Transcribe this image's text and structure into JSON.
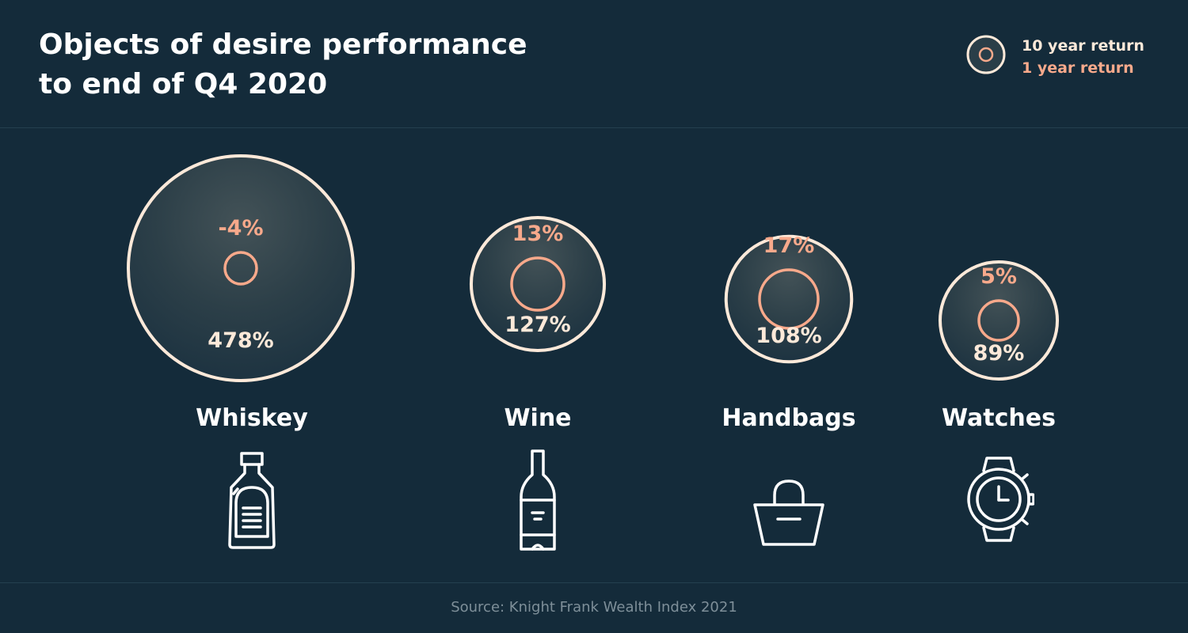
{
  "title_lines": [
    "Objects of desire performance",
    "to end of Q4 2020"
  ],
  "legend": {
    "ten_year": "10 year return",
    "one_year": "1 year return"
  },
  "colors": {
    "background": "#142b3a",
    "ten_year": "#fde9d9",
    "one_year": "#f8a98b",
    "label": "#ffffff",
    "source": "#7e8f99"
  },
  "chart_data": {
    "type": "bubble",
    "series": [
      {
        "name": "10 year return",
        "unit": "%"
      },
      {
        "name": "1 year return",
        "unit": "%"
      }
    ],
    "items": [
      {
        "category": "Whiskey",
        "ten_year_return": 478,
        "ten_year_label": "478%",
        "one_year_return": -4,
        "one_year_label": "-4%",
        "icon": "whiskey-bottle-icon"
      },
      {
        "category": "Wine",
        "ten_year_return": 127,
        "ten_year_label": "127%",
        "one_year_return": 13,
        "one_year_label": "13%",
        "icon": "wine-bottle-icon"
      },
      {
        "category": "Handbags",
        "ten_year_return": 108,
        "ten_year_label": "108%",
        "one_year_return": 17,
        "one_year_label": "17%",
        "icon": "handbag-icon"
      },
      {
        "category": "Watches",
        "ten_year_return": 89,
        "ten_year_label": "89%",
        "one_year_return": 5,
        "one_year_label": "5%",
        "icon": "watch-icon"
      }
    ]
  },
  "source": "Source: Knight Frank Wealth Index 2021"
}
